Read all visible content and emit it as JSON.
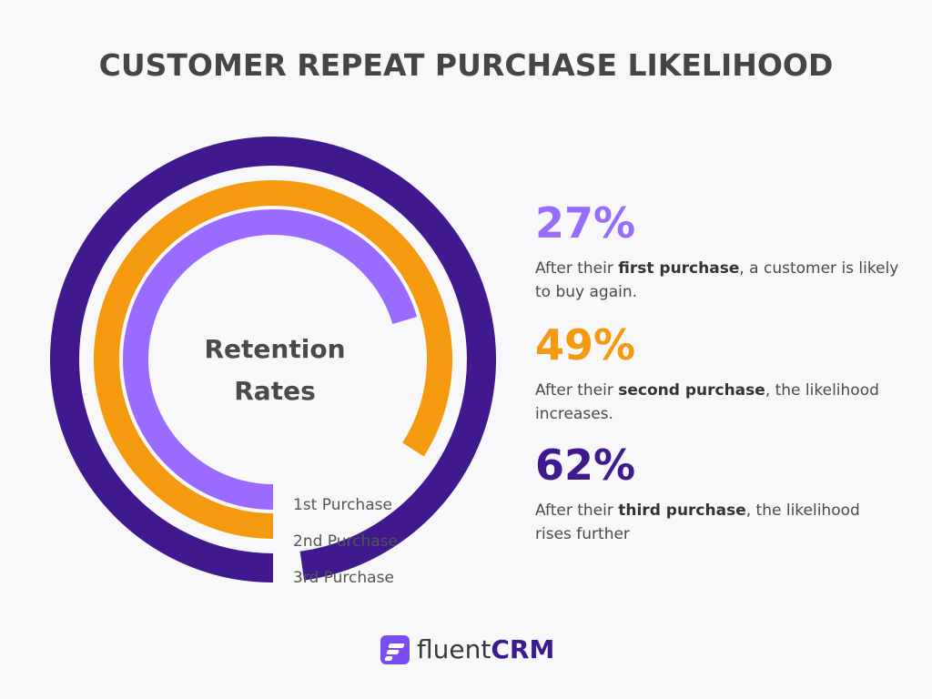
{
  "title": "CUSTOMER REPEAT PURCHASE LIKELIHOOD",
  "chart_data": {
    "type": "radial-bar",
    "center_label": [
      "Retention",
      "Rates"
    ],
    "categories": [
      "1st Purchase",
      "2nd Purchase",
      "3rd Purchase"
    ],
    "values": [
      27,
      49,
      62
    ],
    "value_unit": "%",
    "colors": [
      "#9a6bff",
      "#f59a0e",
      "#40198f"
    ]
  },
  "stats": [
    {
      "value": "27%",
      "pre": "After their ",
      "bold": "first purchase",
      "post": ", a customer is likely to buy again.",
      "color": "#9a6bff"
    },
    {
      "value": "49%",
      "pre": "After their ",
      "bold": "second purchase",
      "post": ", the likelihood increases.",
      "color": "#f59a0e"
    },
    {
      "value": "62%",
      "pre": "After their ",
      "bold": "third purchase",
      "post": ", the likelihood rises further",
      "color": "#40198f"
    }
  ],
  "brand": {
    "light": "fluent",
    "bold": "CRM",
    "color": "#7b4cf5"
  }
}
